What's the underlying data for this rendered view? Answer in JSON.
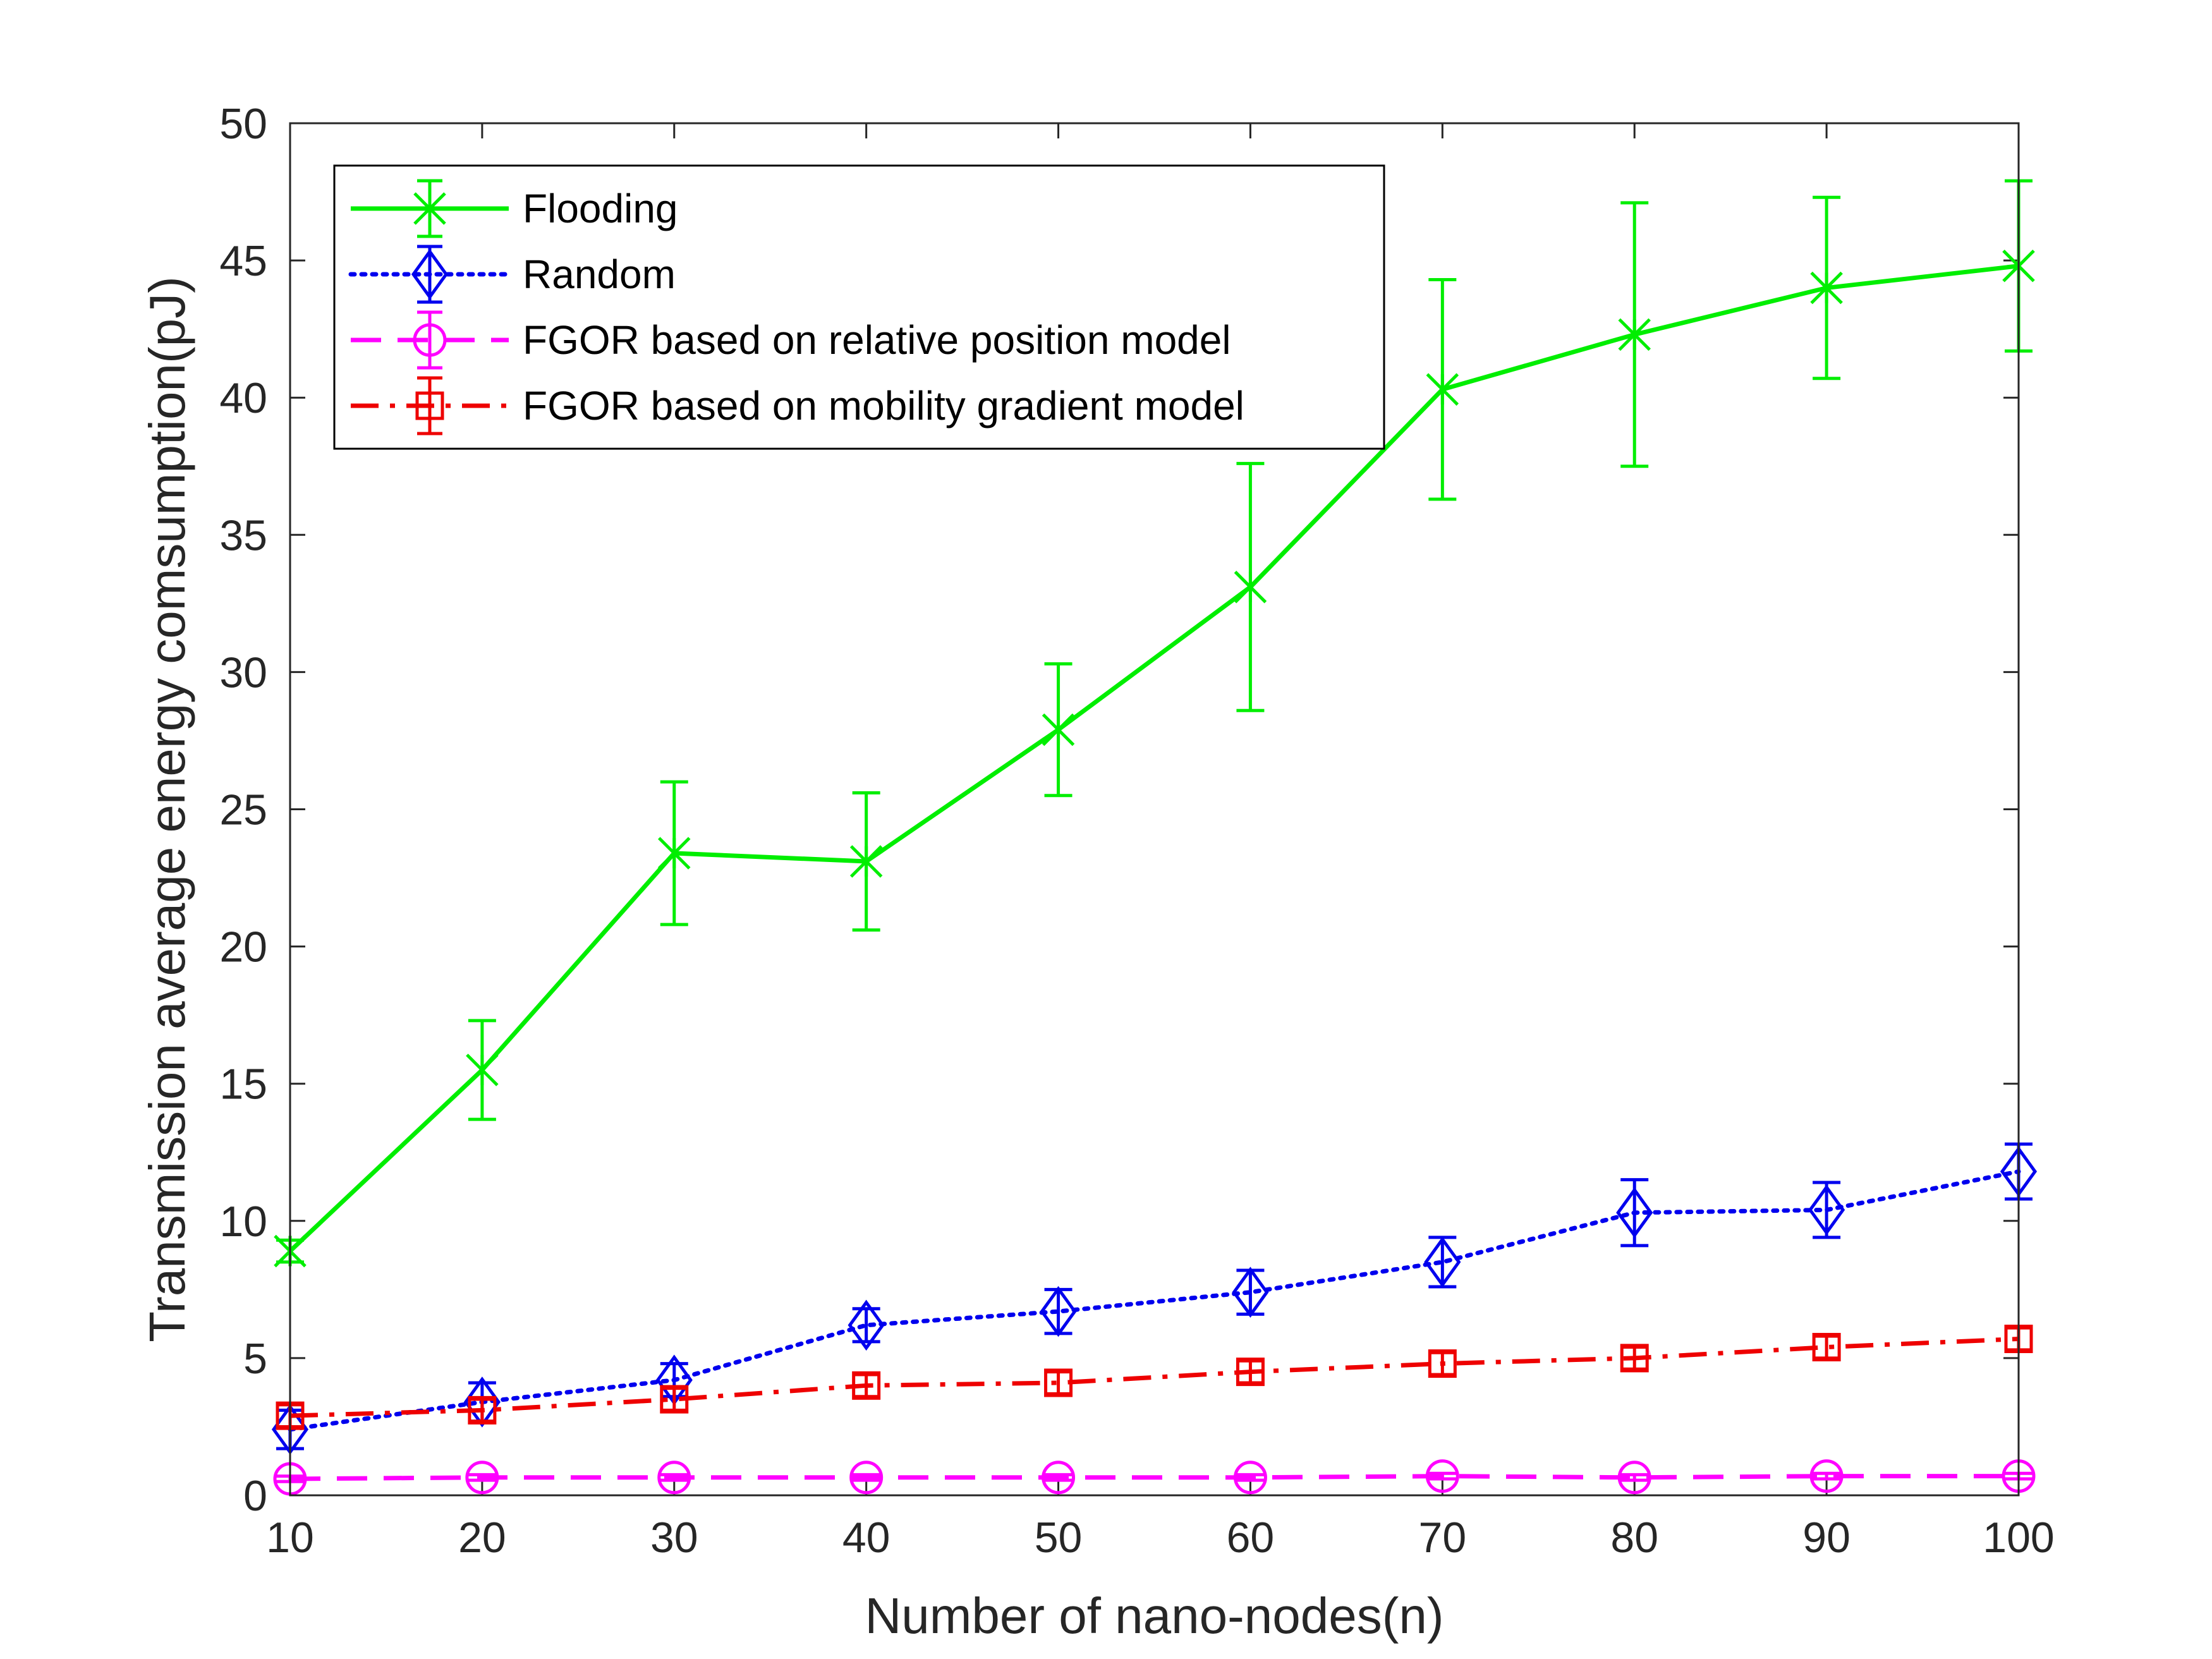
{
  "chart_data": {
    "type": "line",
    "xlabel": "Number of nano-nodes(n)",
    "ylabel": "Transmission average energy comsumption(pJ)",
    "xlim": [
      10,
      100
    ],
    "ylim": [
      0,
      50
    ],
    "xticks": [
      10,
      20,
      30,
      40,
      50,
      60,
      70,
      80,
      90,
      100
    ],
    "yticks": [
      0,
      5,
      10,
      15,
      20,
      25,
      30,
      35,
      40,
      45,
      50
    ],
    "grid": false,
    "legend_position": "top-left",
    "x": [
      10,
      20,
      30,
      40,
      50,
      60,
      70,
      80,
      90,
      100
    ],
    "series": [
      {
        "name": "Flooding",
        "color": "#00ee00",
        "dash": "solid",
        "marker": "x",
        "values": [
          8.9,
          15.5,
          23.4,
          23.1,
          27.9,
          33.1,
          40.3,
          42.3,
          44.0,
          44.8
        ],
        "error": [
          0.4,
          1.8,
          2.6,
          2.5,
          2.4,
          4.5,
          4.0,
          4.8,
          3.3,
          3.1
        ]
      },
      {
        "name": "Random",
        "color": "#0000ee",
        "dash": "dotted",
        "marker": "diamond",
        "values": [
          2.4,
          3.4,
          4.2,
          6.2,
          6.7,
          7.4,
          8.5,
          10.3,
          10.4,
          11.8
        ],
        "error": [
          0.7,
          0.7,
          0.6,
          0.6,
          0.8,
          0.8,
          0.9,
          1.2,
          1.0,
          1.0
        ]
      },
      {
        "name": "FGOR based on relative position model",
        "color": "#ff00ff",
        "dash": "dashed",
        "marker": "circle",
        "values": [
          0.6,
          0.65,
          0.65,
          0.65,
          0.65,
          0.65,
          0.7,
          0.65,
          0.7,
          0.7
        ],
        "error": [
          0.1,
          0.1,
          0.1,
          0.1,
          0.1,
          0.1,
          0.1,
          0.1,
          0.1,
          0.1
        ]
      },
      {
        "name": "FGOR based on mobility gradient model",
        "color": "#ee0000",
        "dash": "dashdot",
        "marker": "square",
        "values": [
          2.9,
          3.1,
          3.5,
          4.0,
          4.1,
          4.5,
          4.8,
          5.0,
          5.4,
          5.7
        ],
        "error": [
          0.4,
          0.4,
          0.4,
          0.4,
          0.4,
          0.4,
          0.4,
          0.4,
          0.4,
          0.4
        ]
      }
    ]
  }
}
